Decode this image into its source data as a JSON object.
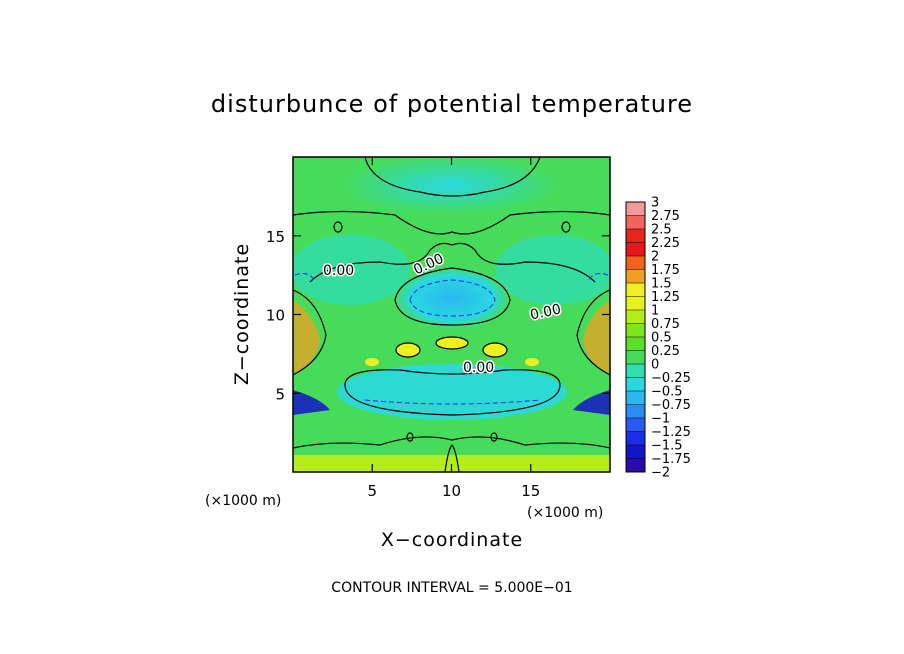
{
  "chart_data": {
    "type": "heatmap",
    "title": "disturbunce of potential temperature",
    "xlabel": "X−coordinate",
    "ylabel": "Z−coordinate",
    "x_unit_left": "(×1000 m)",
    "x_unit_right": "(×1000 m)",
    "xlim": [
      0,
      20
    ],
    "ylim": [
      0,
      20
    ],
    "x_ticks": [
      5,
      10,
      15
    ],
    "y_ticks": [
      5,
      10,
      15
    ],
    "x_tick_labels": [
      "5",
      "10",
      "15"
    ],
    "y_tick_labels": [
      "5",
      "10",
      "15"
    ],
    "colorbar": {
      "min": -2,
      "max": 3,
      "levels": [
        3,
        2.75,
        2.5,
        2.25,
        2,
        1.75,
        1.5,
        1.25,
        1,
        0.75,
        0.5,
        0.25,
        0,
        -0.25,
        -0.5,
        -0.75,
        -1,
        -1.25,
        -1.5,
        -1.75,
        -2
      ],
      "labels": [
        "3",
        "2.75",
        "2.5",
        "2.25",
        "2",
        "1.75",
        "1.5",
        "1.25",
        "1",
        "0.75",
        "0.5",
        "0.25",
        "0",
        "−0.25",
        "−0.5",
        "−0.75",
        "−1",
        "−1.25",
        "−1.5",
        "−1.75",
        "−2"
      ],
      "colors": [
        "#f29a9a",
        "#f0645a",
        "#e8251c",
        "#e8151a",
        "#f2621c",
        "#f0a020",
        "#eeee20",
        "#e6f21e",
        "#b4ec1c",
        "#82e41e",
        "#5ae02a",
        "#46dc5a",
        "#30dcb0",
        "#2ad8e0",
        "#2ab8f0",
        "#2a8ef0",
        "#2a58f0",
        "#1a2ee6",
        "#1414c8",
        "#2c0ca8",
        "#6a10a8"
      ]
    },
    "contour_labels": [
      "0.00",
      "0.00",
      "0.00",
      "0.00"
    ],
    "contour_interval_text": "CONTOUR INTERVAL = 5.000E−01"
  }
}
